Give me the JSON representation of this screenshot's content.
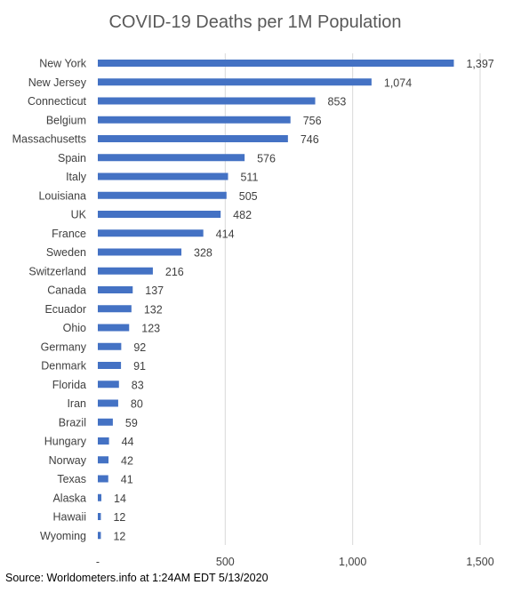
{
  "chart_data": {
    "type": "bar",
    "orientation": "horizontal",
    "title": "COVID-19 Deaths per 1M Population",
    "categories": [
      "New York",
      "New Jersey",
      "Connecticut",
      "Belgium",
      "Massachusetts",
      "Spain",
      "Italy",
      "Louisiana",
      "UK",
      "France",
      "Sweden",
      "Switzerland",
      "Canada",
      "Ecuador",
      "Ohio",
      "Germany",
      "Denmark",
      "Florida",
      "Iran",
      "Brazil",
      "Hungary",
      "Norway",
      "Texas",
      "Alaska",
      "Hawaii",
      "Wyoming"
    ],
    "values": [
      1397,
      1074,
      853,
      756,
      746,
      576,
      511,
      505,
      482,
      414,
      328,
      216,
      137,
      132,
      123,
      92,
      91,
      83,
      80,
      59,
      44,
      42,
      41,
      14,
      12,
      12
    ],
    "value_labels": [
      "1,397",
      "1,074",
      "853",
      "756",
      "746",
      "576",
      "511",
      "505",
      "482",
      "414",
      "328",
      "216",
      "137",
      "132",
      "123",
      "92",
      "91",
      "83",
      "80",
      "59",
      "44",
      "42",
      "41",
      "14",
      "12",
      "12"
    ],
    "xlim": [
      0,
      1500
    ],
    "x_ticks": [
      0,
      500,
      1000,
      1500
    ],
    "x_tick_labels": [
      "-",
      "500",
      "1,000",
      "1,500"
    ],
    "grid": true,
    "bar_color": "#4472C4",
    "grid_color": "#D9D9D9"
  },
  "source": "Source: Worldometers.info at 1:24AM EDT 5/13/2020"
}
